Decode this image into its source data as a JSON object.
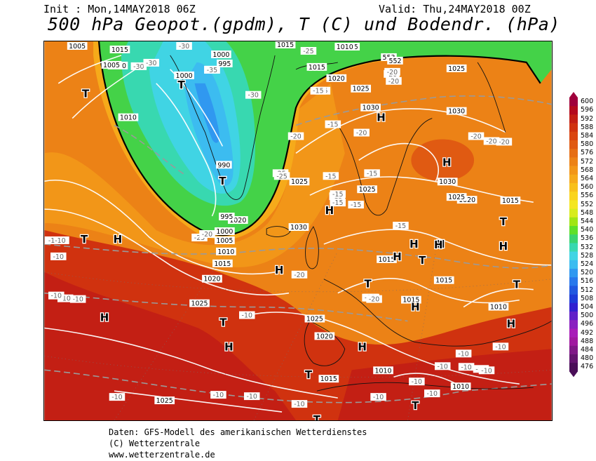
{
  "header": {
    "init": "Init : Mon,14MAY2018 06Z",
    "valid": "Valid: Thu,24MAY2018 00Z",
    "title": "500 hPa Geopot.(gpdm), T (C) und Bodendr. (hPa)"
  },
  "footer": {
    "line1": "Daten: GFS-Modell des amerikanischen Wetterdienstes",
    "line2": "(C) Wetterzentrale",
    "line3": "www.wetterzentrale.de"
  },
  "legend": {
    "values": [
      "600",
      "596",
      "592",
      "588",
      "584",
      "580",
      "576",
      "572",
      "568",
      "564",
      "560",
      "556",
      "552",
      "548",
      "544",
      "540",
      "536",
      "532",
      "528",
      "524",
      "520",
      "516",
      "512",
      "508",
      "504",
      "500",
      "496",
      "492",
      "488",
      "484",
      "480",
      "476"
    ],
    "colors": [
      "#a0003c",
      "#b40a1e",
      "#c31f14",
      "#d0320f",
      "#da4510",
      "#e05a12",
      "#e66e14",
      "#ec8216",
      "#f29618",
      "#f6aa1a",
      "#f8c01a",
      "#fad41c",
      "#f4e620",
      "#d8ec1c",
      "#a0e614",
      "#5ee02a",
      "#3ad470",
      "#38d8b0",
      "#40d4e4",
      "#3cbcf0",
      "#3098f0",
      "#2878ec",
      "#2058e0",
      "#1c3cd8",
      "#3020d0",
      "#6020c8",
      "#8a20c0",
      "#a81cb8",
      "#a018a0",
      "#801888",
      "#641470",
      "#4a0e58"
    ]
  },
  "map": {
    "pressure_labels": [
      "1005",
      "1015",
      "1000",
      "995",
      "1000",
      "1010",
      "1015",
      "1025",
      "1005",
      "1010",
      "1015",
      "1020",
      "1025",
      "1030",
      "1030",
      "1020",
      "1025",
      "1010",
      "1030",
      "1025",
      "1025",
      "990",
      "1025",
      "1030",
      "1015",
      "1020",
      "1000",
      "1005",
      "1010",
      "1015",
      "1020",
      "1025",
      "1015",
      "1015",
      "1010",
      "1015",
      "1025",
      "1020",
      "1010",
      "1015",
      "1025",
      "1010",
      "553",
      "552",
      "995"
    ],
    "temp_labels": [
      "-30",
      "-30",
      "-35",
      "-30",
      "-25",
      "-20",
      "-15",
      "-30",
      "-35",
      "-20",
      "-20",
      "-15",
      "-20",
      "-25",
      "-20",
      "-20",
      "-15",
      "-15",
      "-15",
      "-20",
      "-15",
      "-25",
      "-20",
      "-10",
      "-10",
      "-10",
      "-10",
      "-10",
      "-15",
      "-10",
      "-20",
      "-15",
      "-15",
      "-20",
      "-10",
      "-10",
      "-10",
      "-10",
      "-10",
      "-10",
      "-10",
      "-10",
      "-10",
      "-15",
      "-10",
      "-10",
      "-25",
      "-20",
      "-20",
      "-20",
      "-1-10",
      "-10"
    ],
    "highs": [
      "H",
      "H",
      "H",
      "H",
      "H",
      "H",
      "H",
      "H",
      "H",
      "H",
      "H",
      "H",
      "H",
      "H",
      "H"
    ],
    "lows": [
      "T",
      "T",
      "T",
      "T",
      "T",
      "T",
      "T",
      "T",
      "T",
      "T",
      "T",
      "T"
    ]
  }
}
